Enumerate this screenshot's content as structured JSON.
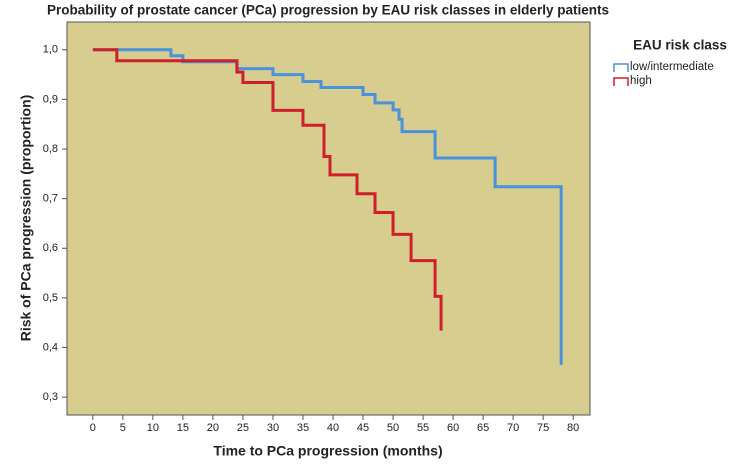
{
  "chart_data": {
    "type": "step",
    "title": "Probability of prostate cancer (PCa) progression by EAU risk classes in elderly patients",
    "x_label": "Time to PCa progression (months)",
    "y_label": "Risk of PCa progression (proportion)",
    "legend_title": "EAU risk class",
    "xlim": [
      -4.3,
      82.8
    ],
    "ylim": [
      0.264,
      1.056
    ],
    "xticks": [
      0,
      5,
      10,
      15,
      20,
      25,
      30,
      35,
      40,
      45,
      50,
      55,
      60,
      65,
      70,
      75,
      80
    ],
    "yticks": [
      {
        "value": 0.3,
        "label": "0,3"
      },
      {
        "value": 0.4,
        "label": "0,4"
      },
      {
        "value": 0.5,
        "label": "0,5"
      },
      {
        "value": 0.6,
        "label": "0,6"
      },
      {
        "value": 0.7,
        "label": "0,7"
      },
      {
        "value": 0.8,
        "label": "0,8"
      },
      {
        "value": 0.9,
        "label": "0,9"
      },
      {
        "value": 1.0,
        "label": "1,0"
      }
    ],
    "series": [
      {
        "name": "low/intermediate",
        "color": "#4a92dc",
        "x": [
          0,
          13,
          15,
          24,
          30,
          35,
          38,
          45,
          47,
          50,
          51,
          51.5,
          57,
          67,
          78,
          78
        ],
        "values": [
          1.0,
          0.988,
          0.976,
          0.962,
          0.95,
          0.936,
          0.924,
          0.91,
          0.893,
          0.879,
          0.86,
          0.835,
          0.782,
          0.724,
          0.724,
          0.365
        ]
      },
      {
        "name": "high",
        "color": "#d01f2c",
        "x": [
          0,
          4,
          24,
          25,
          30,
          35,
          38.5,
          39.5,
          44,
          47,
          50,
          53,
          57,
          58,
          58
        ],
        "values": [
          1.0,
          0.978,
          0.955,
          0.934,
          0.878,
          0.848,
          0.785,
          0.748,
          0.71,
          0.672,
          0.628,
          0.575,
          0.503,
          0.503,
          0.434
        ]
      }
    ]
  }
}
